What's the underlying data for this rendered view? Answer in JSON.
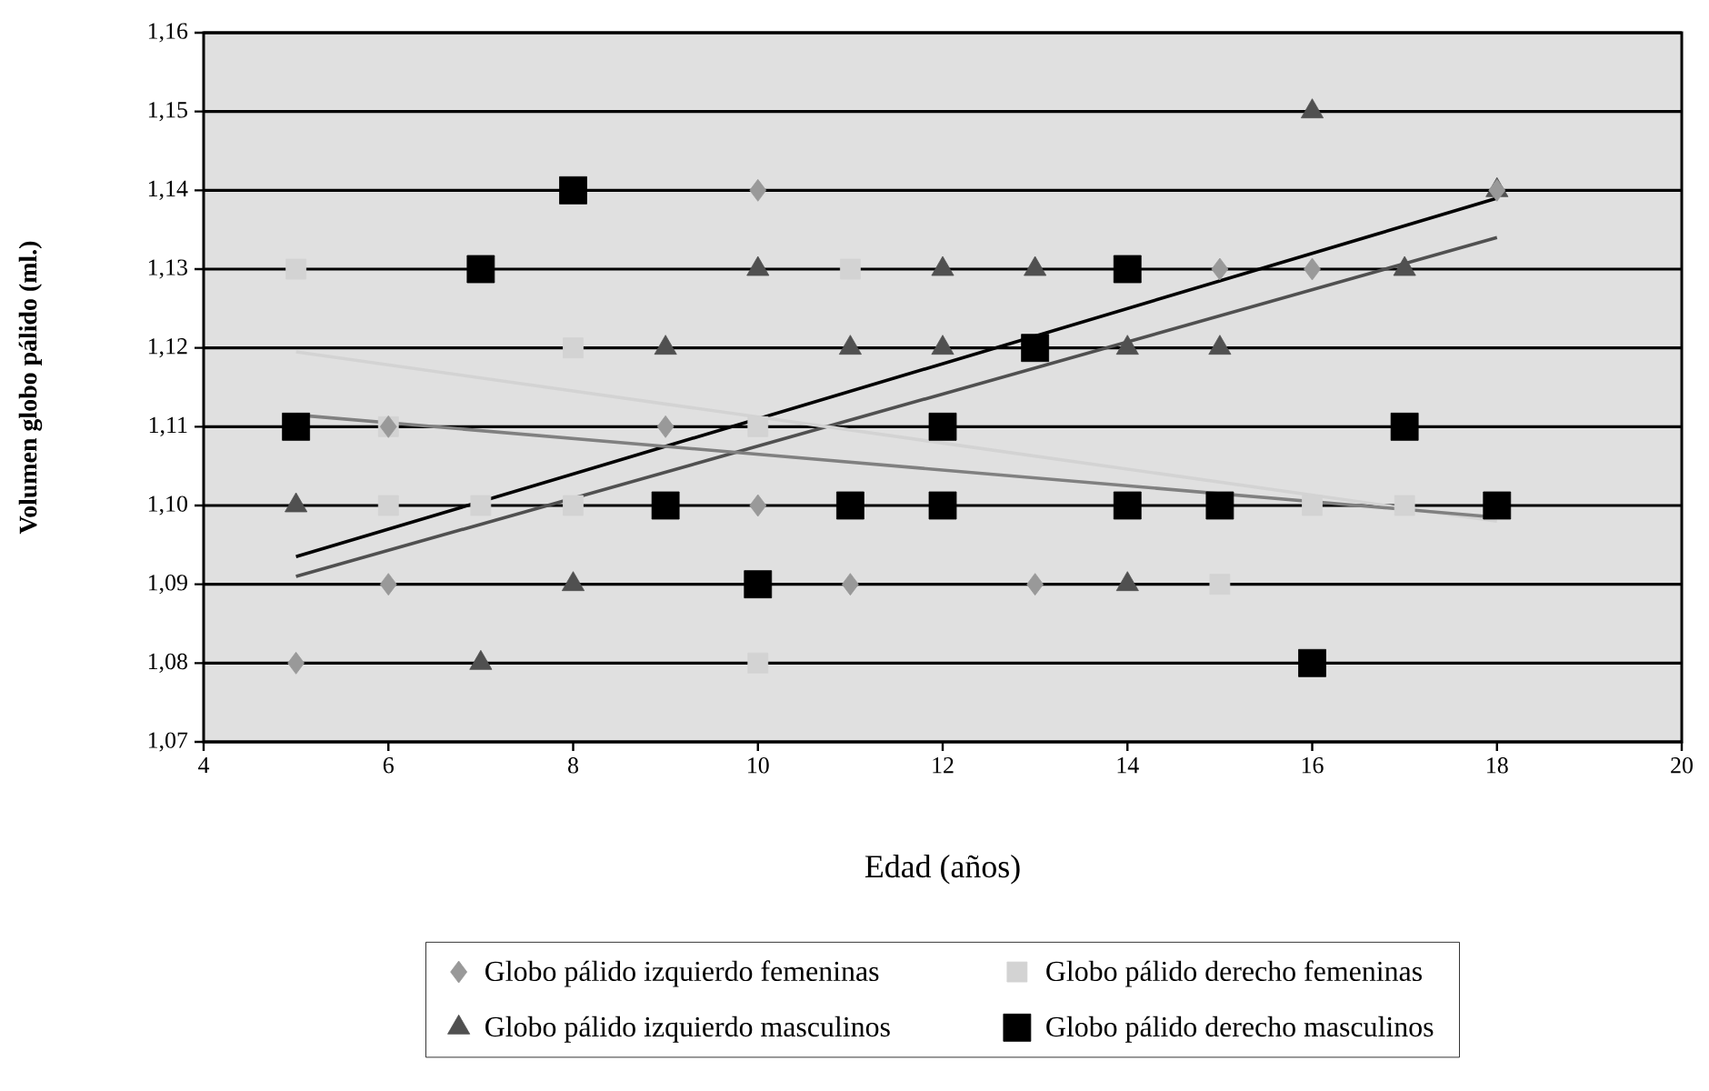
{
  "chart_data": {
    "type": "scatter",
    "xlabel": "Edad (años)",
    "ylabel": "Volumen globo pálido (ml.)",
    "xlim": [
      4,
      20
    ],
    "xticks": [
      4,
      6,
      8,
      10,
      12,
      14,
      16,
      18,
      20
    ],
    "ylim": [
      1.07,
      1.16
    ],
    "yticks": [
      {
        "value": 1.07,
        "label": "1,07"
      },
      {
        "value": 1.08,
        "label": "1,08"
      },
      {
        "value": 1.09,
        "label": "1,09"
      },
      {
        "value": 1.1,
        "label": "1,10"
      },
      {
        "value": 1.11,
        "label": "1,11"
      },
      {
        "value": 1.12,
        "label": "1,12"
      },
      {
        "value": 1.13,
        "label": "1,13"
      },
      {
        "value": 1.14,
        "label": "1,14"
      },
      {
        "value": 1.15,
        "label": "1,15"
      },
      {
        "value": 1.16,
        "label": "1,16"
      }
    ],
    "grid": "y",
    "legend": "bottom",
    "series": [
      {
        "name": "Globo pálido izquierdo femeninas",
        "color": "#999999",
        "marker": "diamond",
        "x": [
          5,
          6,
          6,
          9,
          10,
          10,
          11,
          13,
          15,
          16,
          18
        ],
        "values": [
          1.08,
          1.11,
          1.09,
          1.11,
          1.14,
          1.1,
          1.09,
          1.09,
          1.13,
          1.13,
          1.14
        ]
      },
      {
        "name": "Globo pálido derecho femeninas",
        "color": "#d3d3d3",
        "marker": "square",
        "x": [
          5,
          6,
          6,
          7,
          8,
          8,
          10,
          10,
          11,
          15,
          16,
          17
        ],
        "values": [
          1.13,
          1.11,
          1.1,
          1.1,
          1.12,
          1.1,
          1.11,
          1.08,
          1.13,
          1.09,
          1.1,
          1.1
        ]
      },
      {
        "name": "Globo pálido izquierdo masculinos",
        "color": "#505050",
        "marker": "triangle",
        "x": [
          5,
          7,
          8,
          9,
          10,
          11,
          12,
          12,
          13,
          14,
          14,
          15,
          16,
          17,
          18
        ],
        "values": [
          1.1,
          1.08,
          1.09,
          1.12,
          1.13,
          1.12,
          1.13,
          1.12,
          1.13,
          1.12,
          1.09,
          1.12,
          1.15,
          1.13,
          1.14
        ]
      },
      {
        "name": "Globo pálido derecho masculinos",
        "color": "#000000",
        "marker": "square",
        "x": [
          5,
          7,
          8,
          9,
          10,
          11,
          12,
          12,
          13,
          14,
          14,
          15,
          16,
          17,
          18
        ],
        "values": [
          1.11,
          1.13,
          1.14,
          1.1,
          1.09,
          1.1,
          1.1,
          1.11,
          1.12,
          1.13,
          1.1,
          1.1,
          1.08,
          1.11,
          1.1
        ]
      },
      {
        "type": "line",
        "color": "#000000",
        "x": [
          5,
          18
        ],
        "values": [
          1.0935,
          1.139
        ]
      },
      {
        "type": "line",
        "color": "#505050",
        "x": [
          5,
          18
        ],
        "values": [
          1.091,
          1.134
        ]
      },
      {
        "type": "line",
        "color": "#d3d3d3",
        "x": [
          5,
          18
        ],
        "values": [
          1.1195,
          1.098
        ]
      },
      {
        "type": "line",
        "color": "#808080",
        "x": [
          5,
          18
        ],
        "values": [
          1.1115,
          1.0985
        ]
      }
    ]
  }
}
